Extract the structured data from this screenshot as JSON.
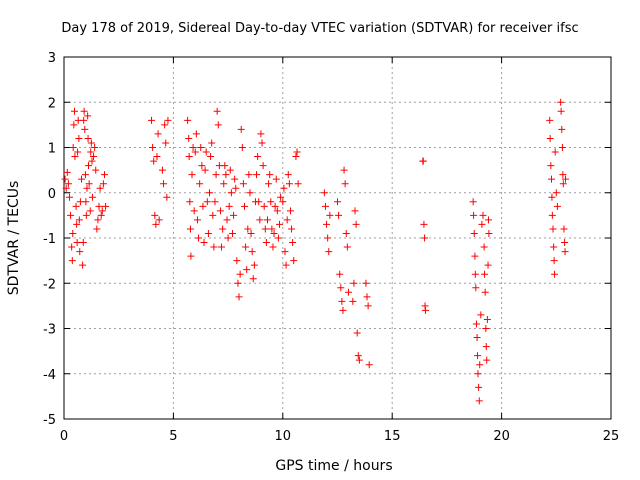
{
  "chart_data": {
    "type": "scatter",
    "title": "Day 178 of 2019, Sidereal Day-to-day VTEC variation (SDTVAR) for receiver ifsc",
    "xlabel": "GPS time / hours",
    "ylabel": "SDTVAR / TECUs",
    "xlim": [
      0,
      25
    ],
    "ylim": [
      -5,
      3
    ],
    "xticks": [
      0,
      5,
      10,
      15,
      20,
      25
    ],
    "yticks": [
      -5,
      -4,
      -3,
      -2,
      -1,
      0,
      1,
      2,
      3
    ],
    "grid": true,
    "marker": "+",
    "color": "#ff0000",
    "series": [
      {
        "name": "SDTVAR",
        "points": [
          [
            0.05,
            0.3
          ],
          [
            0.1,
            0.1
          ],
          [
            0.15,
            0.45
          ],
          [
            0.2,
            0.2
          ],
          [
            0.25,
            -0.1
          ],
          [
            0.3,
            -0.5
          ],
          [
            0.35,
            -1.2
          ],
          [
            0.38,
            -1.5
          ],
          [
            0.4,
            -0.9
          ],
          [
            0.42,
            1.0
          ],
          [
            0.45,
            1.5
          ],
          [
            0.48,
            1.8
          ],
          [
            0.5,
            0.8
          ],
          [
            0.55,
            -0.3
          ],
          [
            0.58,
            -0.7
          ],
          [
            0.6,
            -1.1
          ],
          [
            0.62,
            0.9
          ],
          [
            0.65,
            1.6
          ],
          [
            0.68,
            1.2
          ],
          [
            0.7,
            -0.6
          ],
          [
            0.72,
            -1.3
          ],
          [
            0.75,
            -0.2
          ],
          [
            0.8,
            0.3
          ],
          [
            0.85,
            -1.6
          ],
          [
            0.88,
            -1.1
          ],
          [
            0.9,
            1.6
          ],
          [
            0.92,
            1.8
          ],
          [
            0.95,
            1.4
          ],
          [
            0.98,
            0.4
          ],
          [
            1.0,
            -0.2
          ],
          [
            1.02,
            -0.5
          ],
          [
            1.05,
            0.1
          ],
          [
            1.08,
            1.7
          ],
          [
            1.1,
            1.2
          ],
          [
            1.12,
            0.6
          ],
          [
            1.15,
            0.2
          ],
          [
            1.2,
            -0.4
          ],
          [
            1.22,
            0.9
          ],
          [
            1.25,
            1.1
          ],
          [
            1.28,
            0.7
          ],
          [
            1.3,
            -0.1
          ],
          [
            1.35,
            0.8
          ],
          [
            1.4,
            1.0
          ],
          [
            1.45,
            0.5
          ],
          [
            1.5,
            -0.8
          ],
          [
            1.55,
            -0.6
          ],
          [
            1.6,
            -0.3
          ],
          [
            1.65,
            0.1
          ],
          [
            1.7,
            -0.5
          ],
          [
            1.75,
            -0.4
          ],
          [
            1.8,
            0.2
          ],
          [
            1.85,
            0.4
          ],
          [
            1.9,
            -0.3
          ],
          [
            4.0,
            1.6
          ],
          [
            4.05,
            1.0
          ],
          [
            4.1,
            0.7
          ],
          [
            4.15,
            -0.5
          ],
          [
            4.2,
            -0.7
          ],
          [
            4.25,
            0.8
          ],
          [
            4.3,
            1.3
          ],
          [
            4.35,
            -0.6
          ],
          [
            4.5,
            0.5
          ],
          [
            4.55,
            0.2
          ],
          [
            4.6,
            1.5
          ],
          [
            4.65,
            1.1
          ],
          [
            4.7,
            -0.1
          ],
          [
            4.75,
            1.6
          ],
          [
            5.65,
            1.6
          ],
          [
            5.7,
            1.2
          ],
          [
            5.72,
            0.8
          ],
          [
            5.75,
            -0.2
          ],
          [
            5.78,
            -0.8
          ],
          [
            5.8,
            -1.4
          ],
          [
            5.85,
            0.4
          ],
          [
            5.9,
            1.0
          ],
          [
            5.95,
            -0.4
          ],
          [
            6.0,
            0.9
          ],
          [
            6.05,
            1.3
          ],
          [
            6.1,
            -0.6
          ],
          [
            6.15,
            -1.0
          ],
          [
            6.2,
            0.2
          ],
          [
            6.25,
            1.0
          ],
          [
            6.3,
            0.6
          ],
          [
            6.35,
            -0.3
          ],
          [
            6.4,
            -1.1
          ],
          [
            6.45,
            0.5
          ],
          [
            6.5,
            0.9
          ],
          [
            6.55,
            -0.2
          ],
          [
            6.6,
            -0.9
          ],
          [
            6.65,
            0.0
          ],
          [
            6.7,
            0.8
          ],
          [
            6.75,
            1.1
          ],
          [
            6.8,
            -0.5
          ],
          [
            6.85,
            -1.2
          ],
          [
            6.9,
            -0.2
          ],
          [
            6.95,
            0.4
          ],
          [
            7.0,
            1.8
          ],
          [
            7.05,
            1.5
          ],
          [
            7.1,
            0.6
          ],
          [
            7.15,
            -0.4
          ],
          [
            7.2,
            -1.2
          ],
          [
            7.25,
            -0.8
          ],
          [
            7.3,
            0.2
          ],
          [
            7.35,
            0.6
          ],
          [
            7.4,
            0.4
          ],
          [
            7.45,
            -0.6
          ],
          [
            7.5,
            -1.0
          ],
          [
            7.55,
            -0.3
          ],
          [
            7.6,
            0.5
          ],
          [
            7.65,
            0.0
          ],
          [
            7.7,
            -0.9
          ],
          [
            7.75,
            -0.5
          ],
          [
            7.8,
            0.3
          ],
          [
            7.85,
            0.1
          ],
          [
            7.9,
            -1.5
          ],
          [
            7.95,
            -2.0
          ],
          [
            8.0,
            -2.3
          ],
          [
            8.05,
            -1.8
          ],
          [
            8.1,
            1.4
          ],
          [
            8.15,
            1.0
          ],
          [
            8.2,
            0.2
          ],
          [
            8.25,
            -0.3
          ],
          [
            8.3,
            -1.2
          ],
          [
            8.35,
            -1.7
          ],
          [
            8.4,
            -0.8
          ],
          [
            8.45,
            0.4
          ],
          [
            8.5,
            0.0
          ],
          [
            8.55,
            -0.9
          ],
          [
            8.6,
            -1.3
          ],
          [
            8.65,
            -1.9
          ],
          [
            8.7,
            -1.6
          ],
          [
            8.75,
            -0.2
          ],
          [
            8.8,
            0.4
          ],
          [
            8.85,
            0.8
          ],
          [
            8.9,
            -0.2
          ],
          [
            8.95,
            -0.6
          ],
          [
            9.0,
            1.3
          ],
          [
            9.05,
            1.1
          ],
          [
            9.1,
            0.6
          ],
          [
            9.15,
            -0.3
          ],
          [
            9.2,
            -0.8
          ],
          [
            9.25,
            -1.1
          ],
          [
            9.3,
            -0.6
          ],
          [
            9.35,
            0.2
          ],
          [
            9.4,
            0.4
          ],
          [
            9.45,
            -0.2
          ],
          [
            9.5,
            -0.8
          ],
          [
            9.55,
            -1.2
          ],
          [
            9.6,
            -0.9
          ],
          [
            9.65,
            -0.3
          ],
          [
            9.7,
            0.3
          ],
          [
            9.75,
            -0.4
          ],
          [
            9.8,
            -1.0
          ],
          [
            9.85,
            -0.7
          ],
          [
            9.9,
            -0.1
          ],
          [
            10.0,
            -0.2
          ],
          [
            10.05,
            0.1
          ],
          [
            10.1,
            -1.3
          ],
          [
            10.15,
            -1.6
          ],
          [
            10.2,
            -0.6
          ],
          [
            10.25,
            0.4
          ],
          [
            10.3,
            0.2
          ],
          [
            10.35,
            -0.4
          ],
          [
            10.4,
            -0.8
          ],
          [
            10.45,
            -1.1
          ],
          [
            10.5,
            -1.5
          ],
          [
            10.6,
            0.8
          ],
          [
            10.65,
            0.9
          ],
          [
            10.7,
            0.2
          ],
          [
            11.9,
            0.0
          ],
          [
            11.95,
            -0.3
          ],
          [
            12.0,
            -0.7
          ],
          [
            12.05,
            -1.0
          ],
          [
            12.1,
            -1.3
          ],
          [
            12.15,
            -0.5
          ],
          [
            12.5,
            -0.2
          ],
          [
            12.55,
            -0.5
          ],
          [
            12.6,
            -1.8
          ],
          [
            12.65,
            -2.1
          ],
          [
            12.7,
            -2.4
          ],
          [
            12.75,
            -2.6
          ],
          [
            12.8,
            0.5
          ],
          [
            12.85,
            0.2
          ],
          [
            12.9,
            -0.9
          ],
          [
            12.95,
            -1.2
          ],
          [
            13.0,
            -2.2
          ],
          [
            13.2,
            -2.4
          ],
          [
            13.25,
            -2.0
          ],
          [
            13.3,
            -0.4
          ],
          [
            13.35,
            -0.7
          ],
          [
            13.4,
            -3.1
          ],
          [
            13.45,
            -3.6
          ],
          [
            13.5,
            -3.7
          ],
          [
            13.8,
            -2.0
          ],
          [
            13.85,
            -2.3
          ],
          [
            13.9,
            -2.5
          ],
          [
            13.95,
            -3.8
          ],
          [
            16.4,
            0.7
          ],
          [
            16.42,
            0.7
          ],
          [
            16.45,
            -0.7
          ],
          [
            16.48,
            -1.0
          ],
          [
            16.5,
            -2.5
          ],
          [
            16.52,
            -2.6
          ],
          [
            18.7,
            -0.2
          ],
          [
            18.72,
            -0.5
          ],
          [
            18.75,
            -0.9
          ],
          [
            18.78,
            -1.4
          ],
          [
            18.8,
            -1.8
          ],
          [
            18.82,
            -2.1
          ],
          [
            18.85,
            -2.9
          ],
          [
            18.88,
            -3.2
          ],
          [
            18.9,
            -3.6
          ],
          [
            18.92,
            -4.0
          ],
          [
            18.95,
            -4.3
          ],
          [
            18.98,
            -4.6
          ],
          [
            19.0,
            -3.8
          ],
          [
            19.05,
            -2.7
          ],
          [
            19.1,
            -0.7
          ],
          [
            19.15,
            -0.5
          ],
          [
            19.2,
            -1.2
          ],
          [
            19.22,
            -1.8
          ],
          [
            19.25,
            -2.2
          ],
          [
            19.28,
            -3.0
          ],
          [
            19.3,
            -3.4
          ],
          [
            19.32,
            -3.7
          ],
          [
            19.35,
            -2.8
          ],
          [
            19.38,
            -1.6
          ],
          [
            19.4,
            -0.6
          ],
          [
            19.42,
            -0.9
          ],
          [
            22.2,
            1.6
          ],
          [
            22.22,
            1.2
          ],
          [
            22.25,
            0.6
          ],
          [
            22.28,
            0.3
          ],
          [
            22.3,
            -0.1
          ],
          [
            22.32,
            -0.5
          ],
          [
            22.35,
            -0.8
          ],
          [
            22.38,
            -1.2
          ],
          [
            22.4,
            -1.5
          ],
          [
            22.42,
            -1.8
          ],
          [
            22.45,
            0.9
          ],
          [
            22.5,
            0.0
          ],
          [
            22.55,
            -0.3
          ],
          [
            22.7,
            2.0
          ],
          [
            22.72,
            1.8
          ],
          [
            22.75,
            1.4
          ],
          [
            22.78,
            1.0
          ],
          [
            22.8,
            0.4
          ],
          [
            22.82,
            0.2
          ],
          [
            22.85,
            -0.8
          ],
          [
            22.88,
            -1.1
          ],
          [
            22.9,
            -1.3
          ],
          [
            22.92,
            0.3
          ]
        ]
      }
    ]
  }
}
